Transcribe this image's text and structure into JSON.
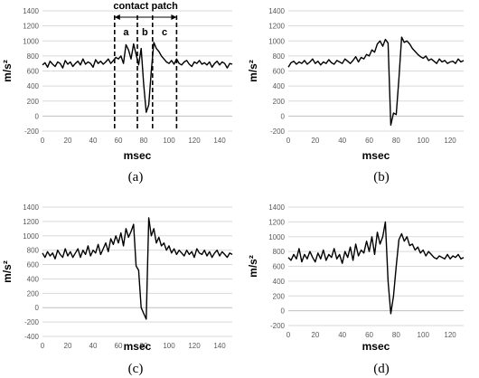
{
  "chart_data": [
    {
      "type": "line",
      "caption": "(a)",
      "xlabel": "msec",
      "ylabel": "m/s²",
      "xlim": [
        0,
        150
      ],
      "ylim": [
        -200,
        1400
      ],
      "xticks": [
        0,
        20,
        40,
        60,
        80,
        100,
        120,
        140
      ],
      "yticks": [
        -200,
        0,
        200,
        400,
        600,
        800,
        1000,
        1200,
        1400
      ],
      "series": [
        {
          "x": [
            0,
            2,
            4,
            6,
            8,
            10,
            12,
            14,
            16,
            18,
            20,
            22,
            24,
            26,
            28,
            30,
            32,
            34,
            36,
            38,
            40,
            42,
            44,
            46,
            48,
            50,
            52,
            54,
            56,
            58,
            60,
            62,
            64,
            66,
            68,
            70,
            72,
            74,
            76,
            78,
            80,
            82,
            84,
            86,
            88,
            90,
            92,
            94,
            96,
            98,
            100,
            102,
            104,
            106,
            108,
            110,
            112,
            114,
            116,
            118,
            120,
            122,
            124,
            126,
            128,
            130,
            132,
            134,
            136,
            138,
            140,
            142,
            144,
            146,
            148,
            150
          ],
          "y": [
            680,
            710,
            650,
            730,
            690,
            660,
            720,
            700,
            640,
            740,
            690,
            720,
            660,
            700,
            730,
            680,
            760,
            690,
            720,
            700,
            650,
            750,
            700,
            730,
            690,
            720,
            760,
            700,
            740,
            780,
            760,
            800,
            700,
            950,
            880,
            760,
            960,
            820,
            680,
            900,
            420,
            50,
            150,
            600,
            980,
            900,
            860,
            800,
            760,
            720,
            700,
            740,
            690,
            760,
            700,
            680,
            720,
            740,
            690,
            660,
            720,
            700,
            740,
            690,
            710,
            680,
            720,
            650,
            700,
            730,
            680,
            720,
            700,
            640,
            700,
            690
          ]
        }
      ],
      "annotations": {
        "contact_patch": "contact patch",
        "regions": [
          {
            "label": "a",
            "from": 57,
            "to": 75
          },
          {
            "label": "b",
            "from": 75,
            "to": 87
          },
          {
            "label": "c",
            "from": 87,
            "to": 106
          }
        ]
      }
    },
    {
      "type": "line",
      "caption": "(b)",
      "xlabel": "msec",
      "ylabel": "m/s²",
      "xlim": [
        0,
        130
      ],
      "ylim": [
        -200,
        1400
      ],
      "xticks": [
        0,
        20,
        40,
        60,
        80,
        100,
        120
      ],
      "yticks": [
        -200,
        0,
        200,
        400,
        600,
        800,
        1000,
        1200,
        1400
      ],
      "series": [
        {
          "x": [
            0,
            2,
            4,
            6,
            8,
            10,
            12,
            14,
            16,
            18,
            20,
            22,
            24,
            26,
            28,
            30,
            32,
            34,
            36,
            38,
            40,
            42,
            44,
            46,
            48,
            50,
            52,
            54,
            56,
            58,
            60,
            62,
            64,
            66,
            68,
            70,
            72,
            74,
            76,
            78,
            80,
            82,
            84,
            86,
            88,
            90,
            92,
            94,
            96,
            98,
            100,
            102,
            104,
            106,
            108,
            110,
            112,
            114,
            116,
            118,
            120,
            122,
            124,
            126,
            128,
            130
          ],
          "y": [
            650,
            710,
            730,
            690,
            720,
            700,
            740,
            690,
            720,
            760,
            700,
            730,
            680,
            720,
            700,
            750,
            710,
            690,
            740,
            720,
            700,
            760,
            730,
            700,
            740,
            790,
            720,
            780,
            760,
            820,
            800,
            880,
            850,
            960,
            1000,
            930,
            1020,
            970,
            -120,
            40,
            20,
            500,
            1050,
            980,
            1000,
            960,
            900,
            860,
            820,
            790,
            770,
            800,
            740,
            760,
            730,
            700,
            760,
            720,
            740,
            700,
            720,
            730,
            700,
            760,
            720,
            740
          ]
        }
      ]
    },
    {
      "type": "line",
      "caption": "(c)",
      "xlabel": "msec",
      "ylabel": "m/s²",
      "xlim": [
        0,
        150
      ],
      "ylim": [
        -400,
        1400
      ],
      "xticks": [
        0,
        20,
        40,
        60,
        80,
        100,
        120,
        140
      ],
      "yticks": [
        -400,
        -200,
        0,
        200,
        400,
        600,
        800,
        1000,
        1200,
        1400
      ],
      "series": [
        {
          "x": [
            0,
            2,
            4,
            6,
            8,
            10,
            12,
            14,
            16,
            18,
            20,
            22,
            24,
            26,
            28,
            30,
            32,
            34,
            36,
            38,
            40,
            42,
            44,
            46,
            48,
            50,
            52,
            54,
            56,
            58,
            60,
            62,
            64,
            66,
            68,
            70,
            72,
            74,
            76,
            78,
            80,
            82,
            84,
            86,
            88,
            90,
            92,
            94,
            96,
            98,
            100,
            102,
            104,
            106,
            108,
            110,
            112,
            114,
            116,
            118,
            120,
            122,
            124,
            126,
            128,
            130,
            132,
            134,
            136,
            138,
            140,
            142,
            144,
            146,
            148,
            150
          ],
          "y": [
            760,
            700,
            780,
            720,
            760,
            680,
            800,
            740,
            700,
            820,
            720,
            780,
            700,
            760,
            820,
            700,
            800,
            740,
            860,
            720,
            800,
            760,
            880,
            740,
            820,
            900,
            780,
            960,
            880,
            1000,
            900,
            1040,
            860,
            1100,
            980,
            1060,
            1160,
            580,
            520,
            0,
            -80,
            -160,
            1250,
            1000,
            1100,
            900,
            980,
            860,
            900,
            800,
            860,
            760,
            820,
            740,
            800,
            760,
            720,
            800,
            740,
            780,
            700,
            820,
            760,
            740,
            800,
            720,
            780,
            700,
            760,
            800,
            720,
            780,
            740,
            700,
            760,
            740
          ]
        }
      ]
    },
    {
      "type": "line",
      "caption": "(d)",
      "xlabel": "msec",
      "ylabel": "m/s²",
      "xlim": [
        0,
        130
      ],
      "ylim": [
        -200,
        1400
      ],
      "xticks": [
        0,
        20,
        40,
        60,
        80,
        100,
        120
      ],
      "yticks": [
        -200,
        0,
        200,
        400,
        600,
        800,
        1000,
        1200,
        1400
      ],
      "series": [
        {
          "x": [
            0,
            2,
            4,
            6,
            8,
            10,
            12,
            14,
            16,
            18,
            20,
            22,
            24,
            26,
            28,
            30,
            32,
            34,
            36,
            38,
            40,
            42,
            44,
            46,
            48,
            50,
            52,
            54,
            56,
            58,
            60,
            62,
            64,
            66,
            68,
            70,
            72,
            74,
            76,
            78,
            80,
            82,
            84,
            86,
            88,
            90,
            92,
            94,
            96,
            98,
            100,
            102,
            104,
            106,
            108,
            110,
            112,
            114,
            116,
            118,
            120,
            122,
            124,
            126,
            128,
            130
          ],
          "y": [
            720,
            680,
            760,
            700,
            840,
            660,
            760,
            700,
            800,
            720,
            660,
            780,
            700,
            820,
            680,
            760,
            720,
            840,
            700,
            760,
            640,
            800,
            720,
            860,
            680,
            900,
            740,
            820,
            780,
            940,
            800,
            1000,
            760,
            1060,
            900,
            1000,
            1200,
            400,
            -40,
            200,
            600,
            960,
            1040,
            940,
            1000,
            880,
            900,
            820,
            860,
            780,
            820,
            740,
            800,
            760,
            720,
            700,
            740,
            720,
            700,
            760,
            700,
            740,
            720,
            760,
            700,
            720
          ]
        }
      ]
    }
  ]
}
